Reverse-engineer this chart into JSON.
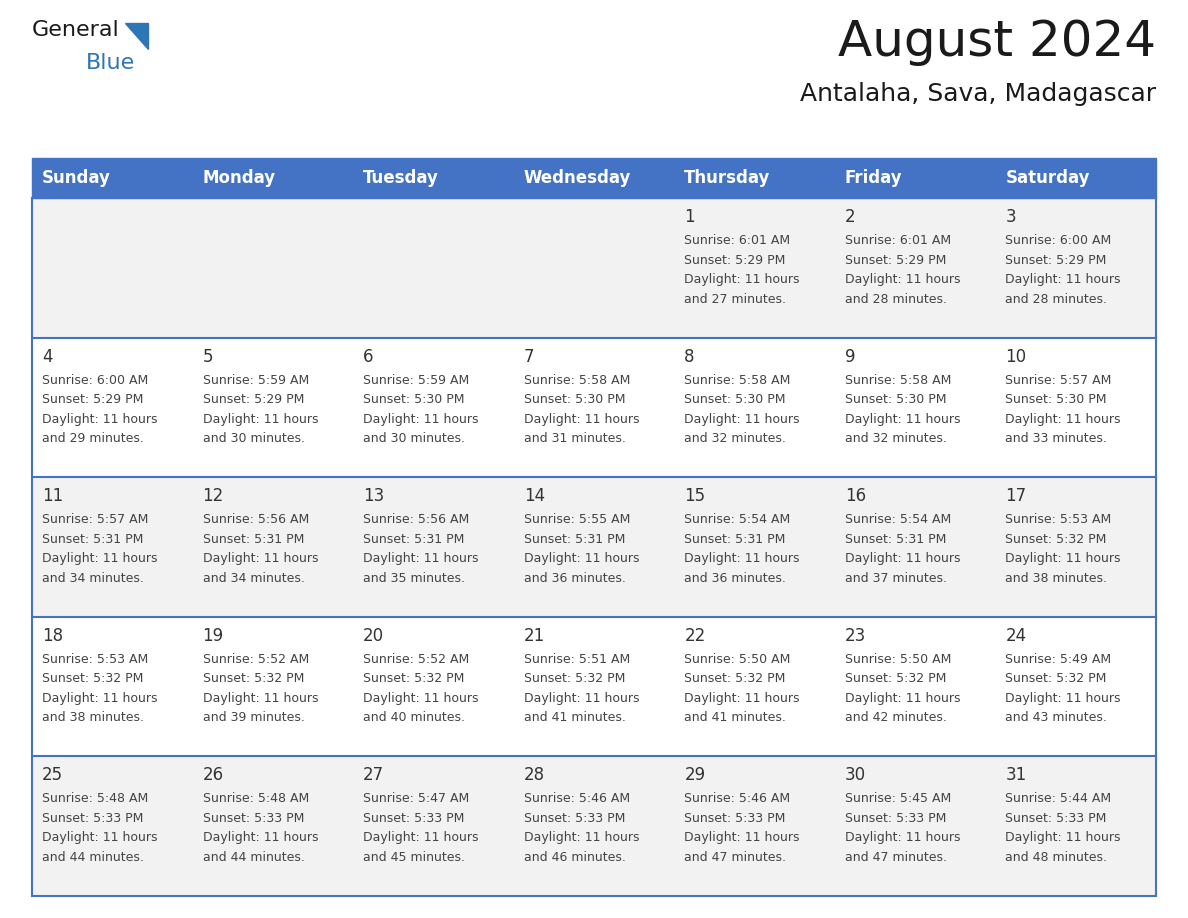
{
  "title": "August 2024",
  "subtitle": "Antalaha, Sava, Madagascar",
  "days_of_week": [
    "Sunday",
    "Monday",
    "Tuesday",
    "Wednesday",
    "Thursday",
    "Friday",
    "Saturday"
  ],
  "header_bg_color": "#4472C4",
  "header_text_color": "#FFFFFF",
  "row1_bg_color": "#F2F2F2",
  "row2_bg_color": "#FFFFFF",
  "day_number_color": "#333333",
  "cell_text_color": "#444444",
  "separator_color": "#4472C4",
  "calendar_data": [
    [
      null,
      null,
      null,
      null,
      {
        "day": 1,
        "sunrise": "6:01 AM",
        "sunset": "5:29 PM",
        "daylight": "11 hours and 27 minutes."
      },
      {
        "day": 2,
        "sunrise": "6:01 AM",
        "sunset": "5:29 PM",
        "daylight": "11 hours and 28 minutes."
      },
      {
        "day": 3,
        "sunrise": "6:00 AM",
        "sunset": "5:29 PM",
        "daylight": "11 hours and 28 minutes."
      }
    ],
    [
      {
        "day": 4,
        "sunrise": "6:00 AM",
        "sunset": "5:29 PM",
        "daylight": "11 hours and 29 minutes."
      },
      {
        "day": 5,
        "sunrise": "5:59 AM",
        "sunset": "5:29 PM",
        "daylight": "11 hours and 30 minutes."
      },
      {
        "day": 6,
        "sunrise": "5:59 AM",
        "sunset": "5:30 PM",
        "daylight": "11 hours and 30 minutes."
      },
      {
        "day": 7,
        "sunrise": "5:58 AM",
        "sunset": "5:30 PM",
        "daylight": "11 hours and 31 minutes."
      },
      {
        "day": 8,
        "sunrise": "5:58 AM",
        "sunset": "5:30 PM",
        "daylight": "11 hours and 32 minutes."
      },
      {
        "day": 9,
        "sunrise": "5:58 AM",
        "sunset": "5:30 PM",
        "daylight": "11 hours and 32 minutes."
      },
      {
        "day": 10,
        "sunrise": "5:57 AM",
        "sunset": "5:30 PM",
        "daylight": "11 hours and 33 minutes."
      }
    ],
    [
      {
        "day": 11,
        "sunrise": "5:57 AM",
        "sunset": "5:31 PM",
        "daylight": "11 hours and 34 minutes."
      },
      {
        "day": 12,
        "sunrise": "5:56 AM",
        "sunset": "5:31 PM",
        "daylight": "11 hours and 34 minutes."
      },
      {
        "day": 13,
        "sunrise": "5:56 AM",
        "sunset": "5:31 PM",
        "daylight": "11 hours and 35 minutes."
      },
      {
        "day": 14,
        "sunrise": "5:55 AM",
        "sunset": "5:31 PM",
        "daylight": "11 hours and 36 minutes."
      },
      {
        "day": 15,
        "sunrise": "5:54 AM",
        "sunset": "5:31 PM",
        "daylight": "11 hours and 36 minutes."
      },
      {
        "day": 16,
        "sunrise": "5:54 AM",
        "sunset": "5:31 PM",
        "daylight": "11 hours and 37 minutes."
      },
      {
        "day": 17,
        "sunrise": "5:53 AM",
        "sunset": "5:32 PM",
        "daylight": "11 hours and 38 minutes."
      }
    ],
    [
      {
        "day": 18,
        "sunrise": "5:53 AM",
        "sunset": "5:32 PM",
        "daylight": "11 hours and 38 minutes."
      },
      {
        "day": 19,
        "sunrise": "5:52 AM",
        "sunset": "5:32 PM",
        "daylight": "11 hours and 39 minutes."
      },
      {
        "day": 20,
        "sunrise": "5:52 AM",
        "sunset": "5:32 PM",
        "daylight": "11 hours and 40 minutes."
      },
      {
        "day": 21,
        "sunrise": "5:51 AM",
        "sunset": "5:32 PM",
        "daylight": "11 hours and 41 minutes."
      },
      {
        "day": 22,
        "sunrise": "5:50 AM",
        "sunset": "5:32 PM",
        "daylight": "11 hours and 41 minutes."
      },
      {
        "day": 23,
        "sunrise": "5:50 AM",
        "sunset": "5:32 PM",
        "daylight": "11 hours and 42 minutes."
      },
      {
        "day": 24,
        "sunrise": "5:49 AM",
        "sunset": "5:32 PM",
        "daylight": "11 hours and 43 minutes."
      }
    ],
    [
      {
        "day": 25,
        "sunrise": "5:48 AM",
        "sunset": "5:33 PM",
        "daylight": "11 hours and 44 minutes."
      },
      {
        "day": 26,
        "sunrise": "5:48 AM",
        "sunset": "5:33 PM",
        "daylight": "11 hours and 44 minutes."
      },
      {
        "day": 27,
        "sunrise": "5:47 AM",
        "sunset": "5:33 PM",
        "daylight": "11 hours and 45 minutes."
      },
      {
        "day": 28,
        "sunrise": "5:46 AM",
        "sunset": "5:33 PM",
        "daylight": "11 hours and 46 minutes."
      },
      {
        "day": 29,
        "sunrise": "5:46 AM",
        "sunset": "5:33 PM",
        "daylight": "11 hours and 47 minutes."
      },
      {
        "day": 30,
        "sunrise": "5:45 AM",
        "sunset": "5:33 PM",
        "daylight": "11 hours and 47 minutes."
      },
      {
        "day": 31,
        "sunrise": "5:44 AM",
        "sunset": "5:33 PM",
        "daylight": "11 hours and 48 minutes."
      }
    ]
  ],
  "logo_text_general": "General",
  "logo_text_blue": "Blue",
  "logo_general_color": "#1a1a1a",
  "logo_triangle_color": "#2E75B6",
  "logo_blue_color": "#2E75B6",
  "title_fontsize": 36,
  "subtitle_fontsize": 18,
  "header_fontsize": 12,
  "day_number_fontsize": 12,
  "cell_fontsize": 9
}
